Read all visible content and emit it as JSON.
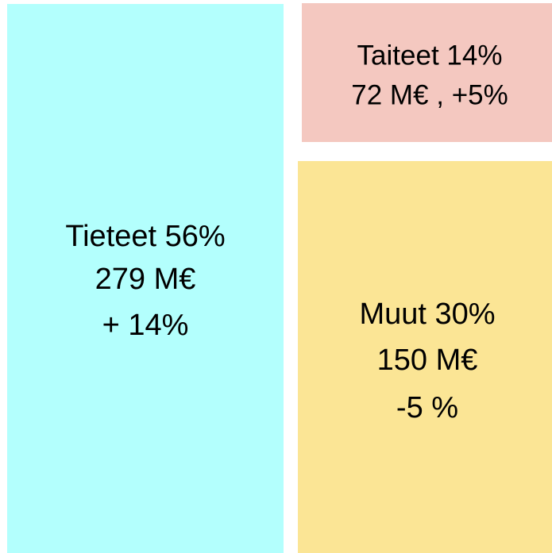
{
  "nodes": [
    {
      "lines": [
        "Tieteet 56%",
        "279 M€",
        "+ 14%"
      ]
    },
    {
      "lines": [
        "Taiteet 14%",
        "72 M€ , +5%"
      ]
    },
    {
      "lines": [
        "Muut 30%",
        "150 M€",
        "-5 %"
      ]
    }
  ]
}
